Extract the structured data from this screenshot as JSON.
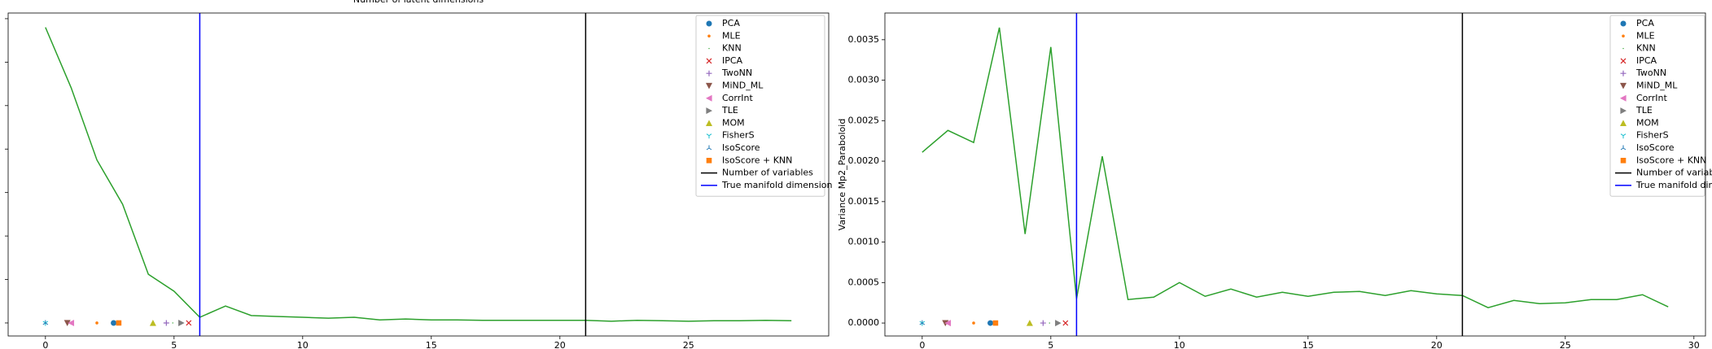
{
  "chart_data": [
    {
      "type": "line",
      "title": "Number of latent dimensions",
      "x": [
        0,
        1,
        2,
        3,
        4,
        5,
        6,
        7,
        8,
        9,
        10,
        11,
        12,
        13,
        14,
        15,
        16,
        17,
        18,
        19,
        20,
        21,
        22,
        23,
        24,
        25,
        26,
        27,
        28,
        29
      ],
      "values": [
        6.8,
        5.41,
        3.75,
        2.73,
        1.12,
        0.73,
        0.13,
        0.39,
        0.17,
        0.15,
        0.13,
        0.11,
        0.13,
        0.07,
        0.09,
        0.07,
        0.07,
        0.06,
        0.06,
        0.06,
        0.06,
        0.06,
        0.04,
        0.06,
        0.05,
        0.04,
        0.05,
        0.05,
        0.06,
        0.05
      ],
      "color": "#2ca02c",
      "xlim": [
        -1.45,
        30.45
      ],
      "xticks": [
        0,
        5,
        10,
        15,
        20,
        25
      ],
      "ylim": [
        -0.3,
        7.13
      ],
      "yticks": [
        0,
        1,
        2,
        3,
        4,
        5,
        6,
        7
      ],
      "estimators": [
        {
          "name": "PCA",
          "color": "#1f77b4",
          "marker": "o",
          "x": 2.65,
          "y": 0
        },
        {
          "name": "MLE",
          "color": "#ff7f0e",
          "marker": ".",
          "x": 2.0,
          "y": 0
        },
        {
          "name": "KNN",
          "color": "#2ca02c",
          "marker": ",",
          "x": 4.95,
          "y": 0
        },
        {
          "name": "IPCA",
          "color": "#d62728",
          "marker": "x",
          "x": 5.57,
          "y": 0
        },
        {
          "name": "TwoNN",
          "color": "#9467bd",
          "marker": "+",
          "x": 4.7,
          "y": 0
        },
        {
          "name": "MiND_ML",
          "color": "#8c564b",
          "marker": "v",
          "x": 0.85,
          "y": 0
        },
        {
          "name": "CorrInt",
          "color": "#e377c2",
          "marker": "<",
          "x": 1.0,
          "y": 0
        },
        {
          "name": "TLE",
          "color": "#7f7f7f",
          "marker": ">",
          "x": 5.28,
          "y": 0
        },
        {
          "name": "MOM",
          "color": "#bcbd22",
          "marker": "^",
          "x": 4.18,
          "y": 0
        },
        {
          "name": "FisherS",
          "color": "#17becf",
          "marker": "1",
          "x": 0,
          "y": 0
        },
        {
          "name": "IsoScore",
          "color": "#1f77b4",
          "marker": "2",
          "x": 0,
          "y": 0
        },
        {
          "name": "IsoScore + KNN",
          "color": "#ff7f0e",
          "marker": "s",
          "x": 2.85,
          "y": 0
        }
      ],
      "vlines": [
        {
          "name": "Number of variables",
          "x": 21,
          "color": "#000000"
        },
        {
          "name": "True manifold dimension",
          "x": 6,
          "color": "#0000ff"
        }
      ]
    },
    {
      "type": "line",
      "ylabel": "Variance Mp2_Paraboloid",
      "x": [
        0,
        1,
        2,
        3,
        4,
        5,
        6,
        7,
        8,
        9,
        10,
        11,
        12,
        13,
        14,
        15,
        16,
        17,
        18,
        19,
        20,
        21,
        22,
        23,
        24,
        25,
        26,
        27,
        28,
        29
      ],
      "values": [
        0.00211,
        0.00238,
        0.00223,
        0.00365,
        0.0011,
        0.00341,
        0.0003,
        0.00206,
        0.00029,
        0.00032,
        0.0005,
        0.00033,
        0.00042,
        0.00032,
        0.00038,
        0.00033,
        0.00038,
        0.00039,
        0.00034,
        0.0004,
        0.00036,
        0.00034,
        0.00019,
        0.00028,
        0.00024,
        0.00025,
        0.00029,
        0.00029,
        0.00035,
        0.0002
      ],
      "color": "#2ca02c",
      "xlim": [
        -1.45,
        30.45
      ],
      "xticks": [
        0,
        5,
        10,
        15,
        20,
        25,
        30
      ],
      "ylim": [
        -0.00016,
        0.00383
      ],
      "yticks": [
        {
          "value": 0,
          "label": "0.0000"
        },
        {
          "value": 0.0005,
          "label": "0.0005"
        },
        {
          "value": 0.001,
          "label": "0.0010"
        },
        {
          "value": 0.0015,
          "label": "0.0015"
        },
        {
          "value": 0.002,
          "label": "0.0020"
        },
        {
          "value": 0.0025,
          "label": "0.0025"
        },
        {
          "value": 0.003,
          "label": "0.0030"
        },
        {
          "value": 0.0035,
          "label": "0.0035"
        }
      ],
      "estimators": [
        {
          "name": "PCA",
          "color": "#1f77b4",
          "marker": "o",
          "x": 2.65,
          "y": 0
        },
        {
          "name": "MLE",
          "color": "#ff7f0e",
          "marker": ".",
          "x": 2.0,
          "y": 0
        },
        {
          "name": "KNN",
          "color": "#2ca02c",
          "marker": ",",
          "x": 4.95,
          "y": 0
        },
        {
          "name": "IPCA",
          "color": "#d62728",
          "marker": "x",
          "x": 5.57,
          "y": 0
        },
        {
          "name": "TwoNN",
          "color": "#9467bd",
          "marker": "+",
          "x": 4.7,
          "y": 0
        },
        {
          "name": "MiND_ML",
          "color": "#8c564b",
          "marker": "v",
          "x": 0.9,
          "y": 0
        },
        {
          "name": "CorrInt",
          "color": "#e377c2",
          "marker": "<",
          "x": 1.0,
          "y": 0
        },
        {
          "name": "TLE",
          "color": "#7f7f7f",
          "marker": ">",
          "x": 5.28,
          "y": 0
        },
        {
          "name": "MOM",
          "color": "#bcbd22",
          "marker": "^",
          "x": 4.18,
          "y": 0
        },
        {
          "name": "FisherS",
          "color": "#17becf",
          "marker": "1",
          "x": 0,
          "y": 0
        },
        {
          "name": "IsoScore",
          "color": "#1f77b4",
          "marker": "2",
          "x": 0,
          "y": 0
        },
        {
          "name": "IsoScore + KNN",
          "color": "#ff7f0e",
          "marker": "s",
          "x": 2.85,
          "y": 0
        }
      ],
      "vlines": [
        {
          "name": "Number of variables",
          "x": 21,
          "color": "#000000"
        },
        {
          "name": "True manifold dimension",
          "x": 6,
          "color": "#0000ff"
        }
      ]
    }
  ]
}
